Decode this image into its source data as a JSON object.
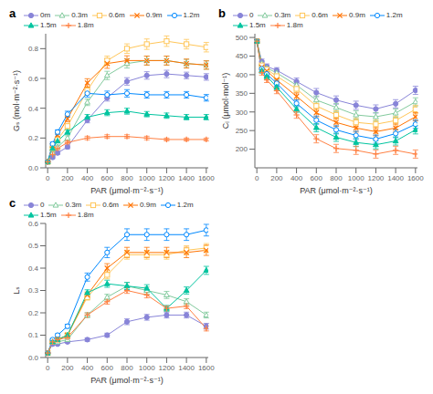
{
  "chart_data": [
    {
      "type": "line",
      "title": "a",
      "x_label": "PAR (μmol·m⁻²·s⁻¹)",
      "y_label": "Gₛ (mol·m⁻²·s⁻¹)",
      "x": [
        0,
        50,
        100,
        200,
        400,
        600,
        800,
        1000,
        1200,
        1400,
        1600
      ],
      "xlim": [
        -20,
        1620
      ],
      "xticks": [
        0,
        200,
        400,
        600,
        800,
        1000,
        1200,
        1400,
        1600
      ],
      "ylim": [
        0,
        0.9
      ],
      "yticks": [
        {
          "value": 0,
          "label": "0.0"
        },
        0.2,
        0.4,
        0.6,
        0.8
      ],
      "grid": false,
      "legend": "top-left",
      "series": [
        {
          "name": "0m",
          "color": "#8884d8",
          "marker": "circle",
          "values": [
            0.04,
            0.07,
            0.1,
            0.14,
            0.32,
            0.47,
            0.58,
            0.62,
            0.63,
            0.62,
            0.61
          ],
          "errors": [
            0.005,
            0.008,
            0.01,
            0.012,
            0.018,
            0.022,
            0.025,
            0.025,
            0.025,
            0.022,
            0.022
          ]
        },
        {
          "name": "0.3m",
          "color": "#82ca9d",
          "marker": "open-triangle",
          "values": [
            0.04,
            0.1,
            0.14,
            0.2,
            0.44,
            0.62,
            0.7,
            0.72,
            0.72,
            0.7,
            0.69
          ],
          "errors": [
            0.005,
            0.009,
            0.012,
            0.015,
            0.022,
            0.028,
            0.03,
            0.03,
            0.03,
            0.028,
            0.028
          ]
        },
        {
          "name": "0.6m",
          "color": "#ffc658",
          "marker": "open-square",
          "values": [
            0.04,
            0.13,
            0.19,
            0.28,
            0.52,
            0.72,
            0.8,
            0.83,
            0.85,
            0.83,
            0.81
          ],
          "errors": [
            0.005,
            0.01,
            0.015,
            0.018,
            0.025,
            0.03,
            0.032,
            0.035,
            0.035,
            0.032,
            0.032
          ]
        },
        {
          "name": "0.9m",
          "color": "#ff7300",
          "marker": "x",
          "values": [
            0.04,
            0.15,
            0.22,
            0.33,
            0.57,
            0.7,
            0.72,
            0.72,
            0.72,
            0.7,
            0.69
          ],
          "errors": [
            0.005,
            0.01,
            0.015,
            0.02,
            0.028,
            0.032,
            0.032,
            0.03,
            0.03,
            0.03,
            0.028
          ]
        },
        {
          "name": "1.2m",
          "color": "#0088fe",
          "marker": "open-circle",
          "values": [
            0.04,
            0.16,
            0.24,
            0.36,
            0.5,
            0.49,
            0.5,
            0.49,
            0.49,
            0.49,
            0.47
          ],
          "errors": [
            0.005,
            0.012,
            0.015,
            0.02,
            0.025,
            0.025,
            0.025,
            0.022,
            0.022,
            0.022,
            0.022
          ]
        },
        {
          "name": "1.5m",
          "color": "#00c49f",
          "marker": "triangle",
          "values": [
            0.04,
            0.13,
            0.18,
            0.24,
            0.34,
            0.37,
            0.38,
            0.36,
            0.35,
            0.34,
            0.34
          ],
          "errors": [
            0.005,
            0.01,
            0.012,
            0.015,
            0.018,
            0.02,
            0.02,
            0.018,
            0.018,
            0.018,
            0.018
          ]
        },
        {
          "name": "1.8m",
          "color": "#ff8042",
          "marker": "plus",
          "values": [
            0.04,
            0.09,
            0.13,
            0.17,
            0.2,
            0.21,
            0.21,
            0.2,
            0.19,
            0.19,
            0.19
          ],
          "errors": [
            0.003,
            0.007,
            0.008,
            0.01,
            0.012,
            0.012,
            0.012,
            0.012,
            0.01,
            0.01,
            0.01
          ]
        }
      ]
    },
    {
      "type": "line",
      "title": "b",
      "x_label": "PAR (μmol·m⁻²·s⁻¹)",
      "y_label": "Cᵢ (μmol·mol⁻¹)",
      "x": [
        0,
        50,
        100,
        200,
        400,
        600,
        800,
        1000,
        1200,
        1400,
        1600
      ],
      "xlim": [
        -20,
        1620
      ],
      "xticks": [
        0,
        200,
        400,
        600,
        800,
        1000,
        1200,
        1400,
        1600
      ],
      "ylim": [
        150,
        510
      ],
      "yticks": [
        200,
        250,
        300,
        350,
        400,
        450,
        500
      ],
      "grid": false,
      "legend": "top-left",
      "series": [
        {
          "name": "0",
          "color": "#8884d8",
          "marker": "circle",
          "values": [
            490,
            435,
            422,
            412,
            382,
            352,
            332,
            318,
            308,
            322,
            358
          ],
          "errors": [
            4,
            7,
            7,
            7,
            9,
            11,
            11,
            11,
            11,
            11,
            11
          ]
        },
        {
          "name": "0.3m",
          "color": "#82ca9d",
          "marker": "open-triangle",
          "values": [
            490,
            430,
            418,
            405,
            372,
            332,
            312,
            292,
            287,
            297,
            327
          ],
          "errors": [
            4,
            7,
            7,
            7,
            9,
            11,
            11,
            11,
            11,
            11,
            11
          ]
        },
        {
          "name": "0.6m",
          "color": "#ffc658",
          "marker": "open-square",
          "values": [
            490,
            425,
            414,
            396,
            362,
            316,
            292,
            272,
            267,
            277,
            307
          ],
          "errors": [
            4,
            7,
            7,
            8,
            9,
            11,
            11,
            11,
            11,
            11,
            11
          ]
        },
        {
          "name": "0.9m",
          "color": "#ff7300",
          "marker": "x",
          "values": [
            490,
            420,
            410,
            386,
            342,
            298,
            272,
            257,
            247,
            257,
            287
          ],
          "errors": [
            4,
            7,
            7,
            8,
            9,
            11,
            11,
            11,
            11,
            11,
            11
          ]
        },
        {
          "name": "1.2m",
          "color": "#0088fe",
          "marker": "open-circle",
          "values": [
            490,
            416,
            402,
            377,
            323,
            278,
            252,
            237,
            227,
            242,
            267
          ],
          "errors": [
            4,
            7,
            7,
            8,
            9,
            11,
            11,
            11,
            11,
            11,
            11
          ]
        },
        {
          "name": "1.5m",
          "color": "#00c49f",
          "marker": "triangle",
          "values": [
            490,
            411,
            396,
            367,
            308,
            258,
            232,
            218,
            212,
            222,
            252
          ],
          "errors": [
            4,
            7,
            7,
            8,
            9,
            11,
            11,
            11,
            11,
            11,
            11
          ]
        },
        {
          "name": "1.8m",
          "color": "#ff8042",
          "marker": "plus",
          "values": [
            490,
            406,
            386,
            357,
            292,
            228,
            202,
            197,
            187,
            197,
            187
          ],
          "errors": [
            4,
            7,
            7,
            8,
            9,
            11,
            11,
            11,
            11,
            11,
            11
          ]
        }
      ]
    },
    {
      "type": "line",
      "title": "c",
      "x_label": "PAR (μmol·m⁻²·s⁻¹)",
      "y_label": "Lₛ",
      "x": [
        0,
        50,
        100,
        200,
        400,
        600,
        800,
        1000,
        1200,
        1400,
        1600
      ],
      "xlim": [
        -20,
        1620
      ],
      "xticks": [
        0,
        200,
        400,
        600,
        800,
        1000,
        1200,
        1400,
        1600
      ],
      "ylim": [
        0,
        0.6
      ],
      "yticks": [
        {
          "value": 0,
          "label": "0.0"
        },
        0.1,
        0.2,
        0.3,
        0.4,
        0.5,
        0.6
      ],
      "grid": false,
      "legend": "top-left",
      "series": [
        {
          "name": "0",
          "color": "#8884d8",
          "marker": "circle",
          "values": [
            0.02,
            0.06,
            0.06,
            0.07,
            0.08,
            0.1,
            0.16,
            0.18,
            0.19,
            0.19,
            0.14
          ],
          "errors": [
            0.002,
            0.004,
            0.004,
            0.005,
            0.007,
            0.009,
            0.013,
            0.013,
            0.013,
            0.013,
            0.013
          ]
        },
        {
          "name": "0.3m",
          "color": "#82ca9d",
          "marker": "open-triangle",
          "values": [
            0.02,
            0.07,
            0.07,
            0.08,
            0.19,
            0.27,
            0.32,
            0.3,
            0.28,
            0.25,
            0.19
          ],
          "errors": [
            0.002,
            0.004,
            0.004,
            0.005,
            0.011,
            0.013,
            0.016,
            0.016,
            0.016,
            0.013,
            0.013
          ]
        },
        {
          "name": "0.6m",
          "color": "#ffc658",
          "marker": "open-square",
          "values": [
            0.02,
            0.07,
            0.08,
            0.1,
            0.27,
            0.37,
            0.46,
            0.46,
            0.46,
            0.48,
            0.49
          ],
          "errors": [
            0.002,
            0.004,
            0.005,
            0.007,
            0.013,
            0.018,
            0.02,
            0.02,
            0.02,
            0.02,
            0.02
          ]
        },
        {
          "name": "0.9m",
          "color": "#ff7300",
          "marker": "x",
          "values": [
            0.02,
            0.07,
            0.08,
            0.1,
            0.28,
            0.4,
            0.47,
            0.47,
            0.47,
            0.47,
            0.48
          ],
          "errors": [
            0.002,
            0.004,
            0.005,
            0.007,
            0.013,
            0.02,
            0.023,
            0.023,
            0.023,
            0.023,
            0.023
          ]
        },
        {
          "name": "1.2m",
          "color": "#0088fe",
          "marker": "open-circle",
          "values": [
            0.02,
            0.08,
            0.1,
            0.14,
            0.36,
            0.47,
            0.55,
            0.55,
            0.55,
            0.55,
            0.57
          ],
          "errors": [
            0.002,
            0.005,
            0.006,
            0.009,
            0.018,
            0.023,
            0.026,
            0.026,
            0.026,
            0.026,
            0.026
          ]
        },
        {
          "name": "1.5m",
          "color": "#00c49f",
          "marker": "triangle",
          "values": [
            0.02,
            0.07,
            0.08,
            0.1,
            0.29,
            0.33,
            0.32,
            0.31,
            0.22,
            0.3,
            0.39
          ],
          "errors": [
            0.002,
            0.004,
            0.005,
            0.007,
            0.013,
            0.016,
            0.016,
            0.016,
            0.013,
            0.016,
            0.018
          ]
        },
        {
          "name": "1.8m",
          "color": "#ff8042",
          "marker": "plus",
          "values": [
            0.02,
            0.07,
            0.08,
            0.09,
            0.19,
            0.25,
            0.3,
            0.28,
            0.22,
            0.23,
            0.13
          ],
          "errors": [
            0.002,
            0.004,
            0.004,
            0.006,
            0.009,
            0.011,
            0.013,
            0.013,
            0.011,
            0.011,
            0.011
          ]
        }
      ]
    }
  ]
}
